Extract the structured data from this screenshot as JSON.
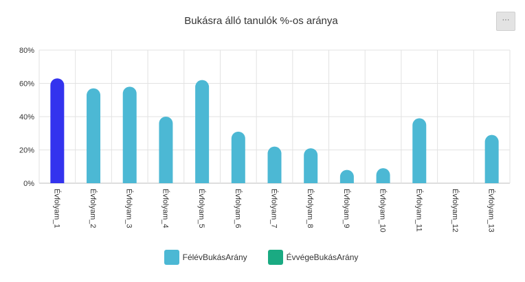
{
  "menu": {
    "icon": "more-horizontal-icon",
    "label": "···"
  },
  "chart_data": {
    "type": "bar",
    "title": "Bukásra álló tanulók %-os aránya",
    "xlabel": "",
    "ylabel": "",
    "ylim": [
      0,
      80
    ],
    "ytick_values": [
      0,
      20,
      40,
      60,
      80
    ],
    "ytick_labels": [
      "0%",
      "20%",
      "40%",
      "60%",
      "80%"
    ],
    "grid": true,
    "legend_position": "bottom",
    "categories": [
      "Évfolyam_1",
      "Évfolyam_2",
      "Évfolyam_3",
      "Évfolyam_4",
      "Évfolyam_5",
      "Évfolyam_6",
      "Évfolyam_7",
      "Évfolyam_8",
      "Évfolyam_9",
      "Évfolyam_10",
      "Évfolyam_11",
      "Évfolyam_12",
      "Évfolyam_13"
    ],
    "series": [
      {
        "name": "FélévBukásArány",
        "color": "#4cb8d4",
        "highlight_color": "#3333ee",
        "highlight_index": 0,
        "values": [
          63,
          57,
          58,
          40,
          62,
          31,
          22,
          21,
          8,
          9,
          39,
          null,
          29
        ]
      },
      {
        "name": "ÉvvégeBukásArány",
        "color": "#1aaa82",
        "values": [
          null,
          null,
          null,
          null,
          null,
          null,
          null,
          null,
          null,
          null,
          null,
          null,
          null
        ]
      }
    ]
  }
}
